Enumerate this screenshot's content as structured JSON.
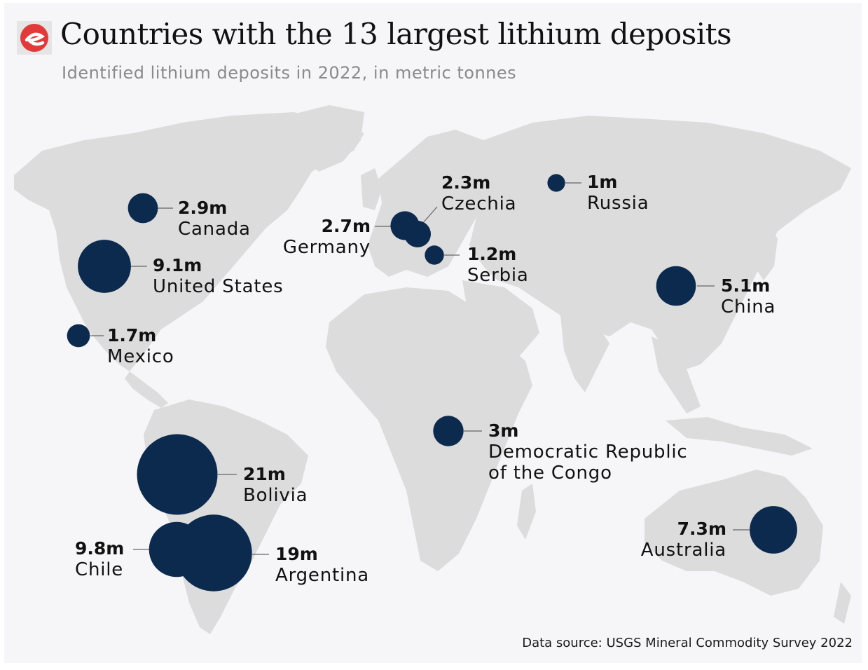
{
  "header": {
    "title": "Countries with the 13 largest lithium deposits",
    "subtitle": "Identified lithium deposits in 2022, in metric tonnes"
  },
  "footer": {
    "source": "Data source: USGS Mineral Commodity Survey 2022"
  },
  "colors": {
    "bubble": "#0c2a4e",
    "land": "#dcdcdc",
    "background": "#f6f6f8",
    "logo_red": "#e03a3a"
  },
  "deposits": [
    {
      "country": "Canada",
      "label": "2.9m",
      "tonnes_million": 2.9
    },
    {
      "country": "United States",
      "label": "9.1m",
      "tonnes_million": 9.1
    },
    {
      "country": "Mexico",
      "label": "1.7m",
      "tonnes_million": 1.7
    },
    {
      "country": "Bolivia",
      "label": "21m",
      "tonnes_million": 21
    },
    {
      "country": "Chile",
      "label": "9.8m",
      "tonnes_million": 9.8
    },
    {
      "country": "Argentina",
      "label": "19m",
      "tonnes_million": 19
    },
    {
      "country": "Germany",
      "label": "2.7m",
      "tonnes_million": 2.7
    },
    {
      "country": "Czechia",
      "label": "2.3m",
      "tonnes_million": 2.3
    },
    {
      "country": "Serbia",
      "label": "1.2m",
      "tonnes_million": 1.2
    },
    {
      "country": "Russia",
      "label": "1m",
      "tonnes_million": 1
    },
    {
      "country": "China",
      "label": "5.1m",
      "tonnes_million": 5.1
    },
    {
      "country": "Democratic Republic\nof the Congo",
      "label": "3m",
      "tonnes_million": 3
    },
    {
      "country": "Australia",
      "label": "7.3m",
      "tonnes_million": 7.3
    }
  ]
}
